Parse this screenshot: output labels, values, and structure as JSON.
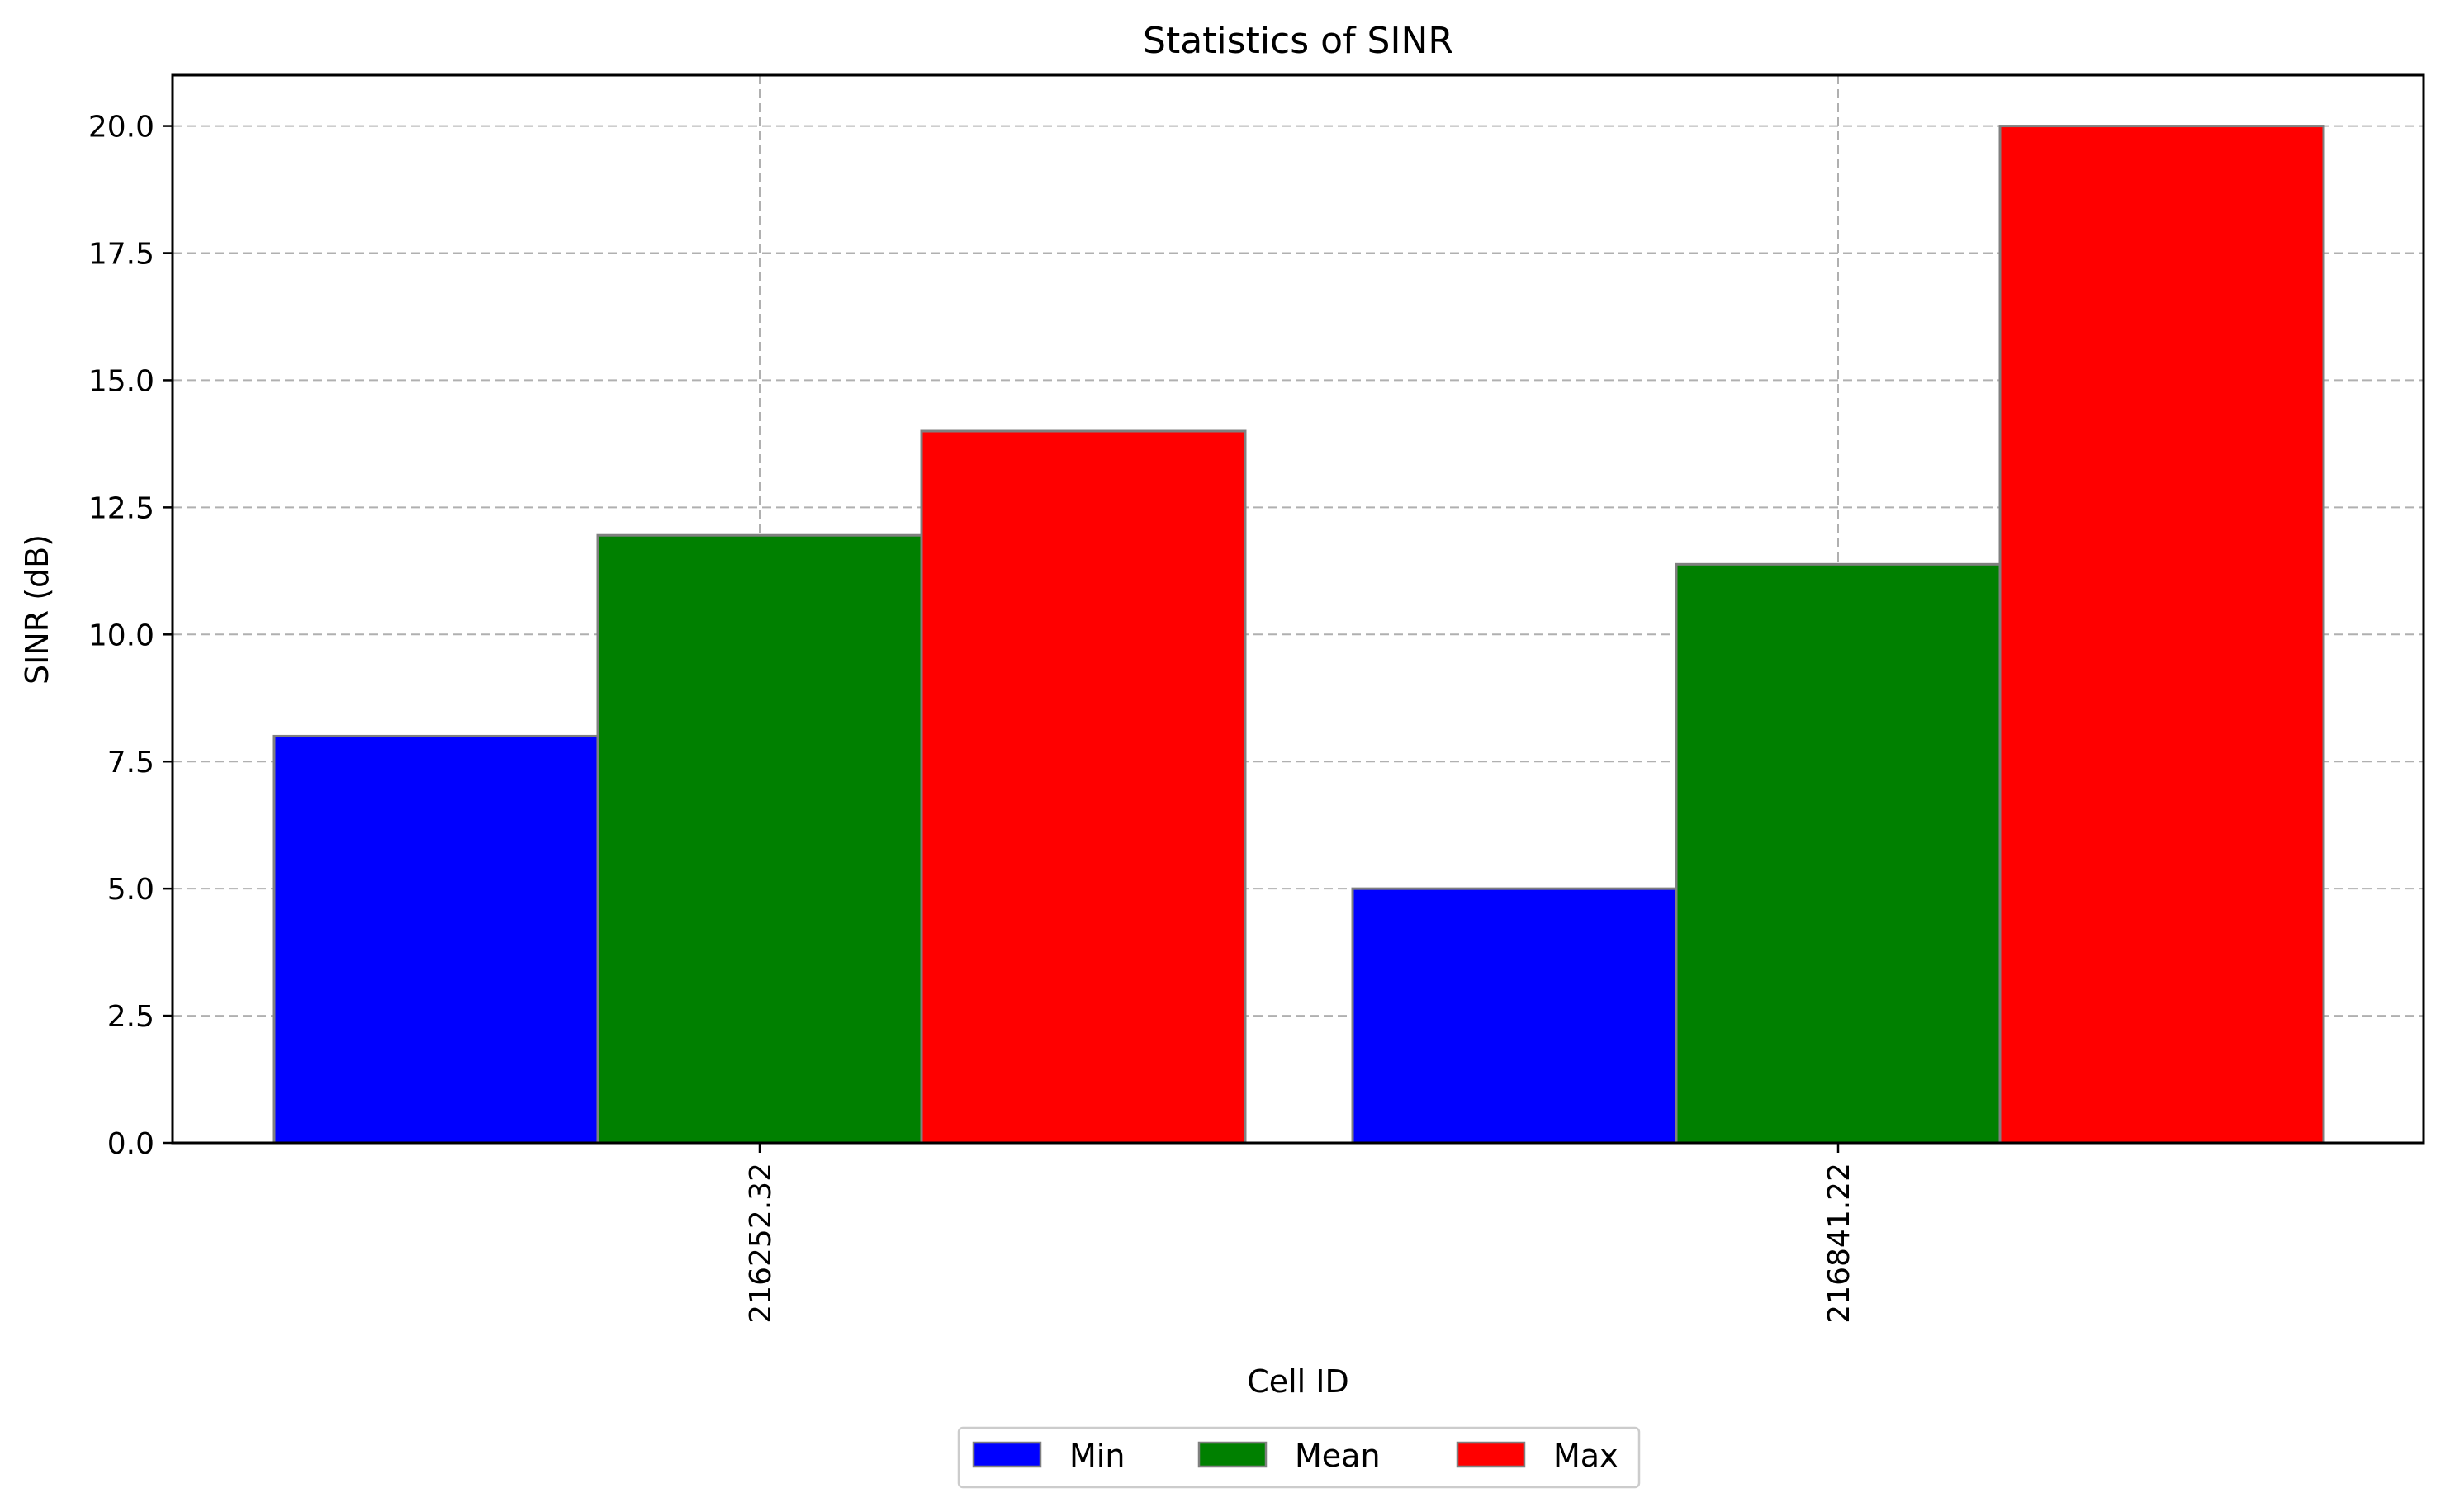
{
  "chart_data": {
    "type": "bar",
    "title": "Statistics of SINR",
    "xlabel": "Cell ID",
    "ylabel": "SINR (dB)",
    "categories": [
      "216252.32",
      "216841.22"
    ],
    "series": [
      {
        "name": "Min",
        "values": [
          8.0,
          5.0
        ],
        "color": "#0000ff"
      },
      {
        "name": "Mean",
        "values": [
          11.95,
          11.38
        ],
        "color": "#008000"
      },
      {
        "name": "Max",
        "values": [
          14.0,
          20.0
        ],
        "color": "#ff0000"
      }
    ],
    "ylim": [
      0,
      21
    ],
    "yticks": [
      "0.0",
      "2.5",
      "5.0",
      "7.5",
      "10.0",
      "12.5",
      "15.0",
      "17.5",
      "20.0"
    ],
    "grid": true,
    "legend_position": "bottom-center",
    "bar_edge_color": "#808080"
  }
}
